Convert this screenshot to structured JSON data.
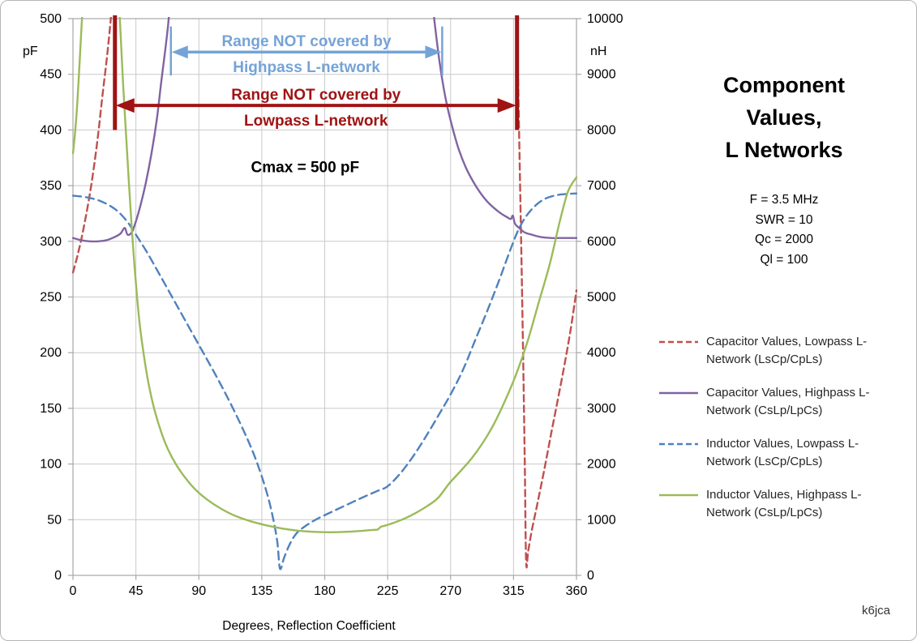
{
  "window": {
    "background": "#FFFFFF",
    "border_color": "#B5B5B5"
  },
  "side_panel": {
    "title": "Component\nValues,\nL Networks",
    "parameters": "F = 3.5 MHz\nSWR = 10\nQc = 2000\nQl = 100",
    "credit": "k6jca"
  },
  "chart_data": {
    "type": "line",
    "x_axis": {
      "title": "Degrees, Reflection Coefficient",
      "min": 0,
      "max": 360,
      "ticks": [
        0,
        45,
        90,
        135,
        180,
        225,
        270,
        315,
        360
      ]
    },
    "y_axis_left": {
      "title": "pF",
      "min": 0,
      "max": 500,
      "ticks": [
        0,
        50,
        100,
        150,
        200,
        250,
        300,
        350,
        400,
        450,
        500
      ]
    },
    "y_axis_right": {
      "title": "nH",
      "min": 0,
      "max": 10000,
      "ticks": [
        0,
        1000,
        2000,
        3000,
        4000,
        5000,
        6000,
        7000,
        8000,
        9000,
        10000
      ]
    },
    "grid": true,
    "style": {
      "grid_color": "#C9C9C9",
      "frame_color": "#A6A6A6",
      "tick_label_color": "#000000"
    },
    "series": [
      {
        "id": "cap-lowpass",
        "name": "Capacitor Values, Lowpass L-Network (LsCp/CpLs)",
        "color": "#C0504D",
        "dash": "8 5",
        "axis": "left",
        "unit": "pF",
        "segments": [
          [
            [
              0,
              272
            ],
            [
              3,
              286
            ],
            [
              6,
              302
            ],
            [
              9,
              321
            ],
            [
              12,
              342
            ],
            [
              15,
              367
            ],
            [
              18,
              396
            ],
            [
              21,
              430
            ],
            [
              24,
              462
            ],
            [
              26,
              486
            ],
            [
              28,
              512
            ]
          ],
          [
            [
              317.3,
              512
            ],
            [
              318.5,
              430
            ],
            [
              320,
              330
            ],
            [
              321.5,
              225
            ],
            [
              323,
              105
            ],
            [
              324,
              12
            ],
            [
              325.5,
              22
            ],
            [
              328,
              40
            ],
            [
              332,
              64
            ],
            [
              337,
              95
            ],
            [
              342,
              128
            ],
            [
              347,
              160
            ],
            [
              352,
              193
            ],
            [
              356,
              222
            ],
            [
              360,
              256
            ]
          ]
        ]
      },
      {
        "id": "cap-highpass",
        "name": "Capacitor Values, Highpass L-Network (CsLp/LpCs)",
        "color": "#8064A2",
        "dash": null,
        "axis": "left",
        "unit": "pF",
        "segments": [
          [
            [
              0,
              303
            ],
            [
              6,
              301
            ],
            [
              12,
              300
            ],
            [
              18,
              300
            ],
            [
              24,
              301
            ],
            [
              30,
              304
            ],
            [
              34,
              307
            ],
            [
              37,
              312
            ],
            [
              39,
              306
            ],
            [
              42,
              308
            ],
            [
              45,
              318
            ],
            [
              48,
              331
            ],
            [
              52,
              352
            ],
            [
              56,
              378
            ],
            [
              60,
              410
            ],
            [
              63,
              442
            ],
            [
              66,
              472
            ],
            [
              68,
              494
            ],
            [
              69.5,
              515
            ]
          ],
          [
            [
              257,
              515
            ],
            [
              259,
              492
            ],
            [
              262,
              462
            ],
            [
              265,
              438
            ],
            [
              268,
              419
            ],
            [
              272,
              399
            ],
            [
              276,
              382
            ],
            [
              281,
              366
            ],
            [
              286,
              354
            ],
            [
              291,
              344
            ],
            [
              296,
              336
            ],
            [
              301,
              330
            ],
            [
              306,
              325
            ],
            [
              310,
              322
            ],
            [
              313,
              320
            ],
            [
              314.5,
              323
            ],
            [
              316,
              316
            ],
            [
              319,
              312
            ],
            [
              323,
              308
            ],
            [
              328,
              306
            ],
            [
              334,
              304
            ],
            [
              342,
              303
            ],
            [
              351,
              303
            ],
            [
              360,
              303
            ]
          ]
        ]
      },
      {
        "id": "ind-lowpass",
        "name": "Inductor Values, Lowpass L-Network (LsCp/CpLs)",
        "color": "#4F81BD",
        "dash": "10 6",
        "axis": "right",
        "unit": "nH",
        "segments": [
          [
            [
              0,
              6820
            ],
            [
              10,
              6790
            ],
            [
              20,
              6720
            ],
            [
              30,
              6580
            ],
            [
              38,
              6380
            ],
            [
              45,
              6120
            ],
            [
              53,
              5800
            ],
            [
              62,
              5400
            ],
            [
              72,
              4950
            ],
            [
              82,
              4500
            ],
            [
              92,
              4050
            ],
            [
              102,
              3600
            ],
            [
              112,
              3120
            ],
            [
              122,
              2600
            ],
            [
              130,
              2130
            ],
            [
              137,
              1620
            ],
            [
              142,
              1150
            ],
            [
              146,
              620
            ],
            [
              148,
              120
            ],
            [
              151,
              320
            ],
            [
              155,
              560
            ],
            [
              160,
              760
            ],
            [
              167,
              900
            ],
            [
              175,
              1020
            ],
            [
              185,
              1140
            ],
            [
              196,
              1270
            ],
            [
              208,
              1410
            ],
            [
              218,
              1520
            ],
            [
              225,
              1600
            ],
            [
              234,
              1830
            ],
            [
              243,
              2130
            ],
            [
              252,
              2480
            ],
            [
              261,
              2860
            ],
            [
              270,
              3250
            ],
            [
              279,
              3700
            ],
            [
              288,
              4250
            ],
            [
              297,
              4800
            ],
            [
              305,
              5320
            ],
            [
              312,
              5800
            ],
            [
              318,
              6180
            ],
            [
              324,
              6450
            ],
            [
              331,
              6650
            ],
            [
              338,
              6770
            ],
            [
              346,
              6830
            ],
            [
              353,
              6850
            ],
            [
              360,
              6860
            ]
          ]
        ]
      },
      {
        "id": "ind-highpass",
        "name": "Inductor Values, Highpass L-Network (CsLp/LpCs)",
        "color": "#9BBB59",
        "dash": null,
        "axis": "right",
        "unit": "nH",
        "segments": [
          [
            [
              0,
              7580
            ],
            [
              1.5,
              7950
            ],
            [
              3,
              8450
            ],
            [
              4.5,
              9100
            ],
            [
              6,
              9800
            ],
            [
              7,
              10250
            ]
          ],
          [
            [
              33,
              10250
            ],
            [
              34.5,
              9500
            ],
            [
              36,
              8750
            ],
            [
              38,
              7900
            ],
            [
              40,
              7050
            ],
            [
              42,
              6250
            ],
            [
              44,
              5550
            ],
            [
              46,
              4950
            ],
            [
              48,
              4450
            ],
            [
              51,
              3900
            ],
            [
              54,
              3450
            ],
            [
              58,
              3000
            ],
            [
              63,
              2580
            ],
            [
              68,
              2260
            ],
            [
              74,
              1980
            ],
            [
              81,
              1730
            ],
            [
              88,
              1530
            ],
            [
              96,
              1360
            ],
            [
              105,
              1210
            ],
            [
              115,
              1080
            ],
            [
              126,
              980
            ],
            [
              138,
              900
            ],
            [
              150,
              840
            ],
            [
              162,
              800
            ],
            [
              174,
              780
            ],
            [
              186,
              775
            ],
            [
              198,
              785
            ],
            [
              207,
              800
            ],
            [
              214,
              815
            ],
            [
              218,
              825
            ],
            [
              220,
              870
            ],
            [
              224,
              900
            ],
            [
              230,
              950
            ],
            [
              237,
              1020
            ],
            [
              245,
              1120
            ],
            [
              253,
              1240
            ],
            [
              261,
              1390
            ],
            [
              269,
              1650
            ],
            [
              277,
              1870
            ],
            [
              285,
              2100
            ],
            [
              293,
              2380
            ],
            [
              301,
              2720
            ],
            [
              309,
              3140
            ],
            [
              317,
              3620
            ],
            [
              325,
              4200
            ],
            [
              333,
              4900
            ],
            [
              341,
              5600
            ],
            [
              348,
              6350
            ],
            [
              354,
              6900
            ],
            [
              360,
              7150
            ]
          ]
        ]
      }
    ],
    "annotations": {
      "highpass_range": {
        "text_lines": [
          "Range NOT covered by",
          "Highpass L-network"
        ],
        "color": "#75A3D7",
        "x_start_deg": 70,
        "x_end_deg": 264,
        "y_pf": 470,
        "cap_top_pf": 493,
        "cap_bottom_pf": 449,
        "stroke_width": 3.5,
        "cap_width": 2.5,
        "head_len": 21,
        "head_half": 8
      },
      "lowpass_range": {
        "text_lines": [
          "Range NOT covered by",
          "Lowpass L-network"
        ],
        "color": "#A01313",
        "x_start_deg": 30,
        "x_end_deg": 317.5,
        "y_pf": 422,
        "cap_top_pf": 503,
        "cap_bottom_pf": 400,
        "stroke_width": 4,
        "cap_width": 5,
        "head_len": 24,
        "head_half": 9
      },
      "cmax_label": {
        "text": "Cmax = 500 pF",
        "color": "#000000",
        "x_deg": 166,
        "y_pf": 362
      }
    },
    "legend_position": "right"
  }
}
